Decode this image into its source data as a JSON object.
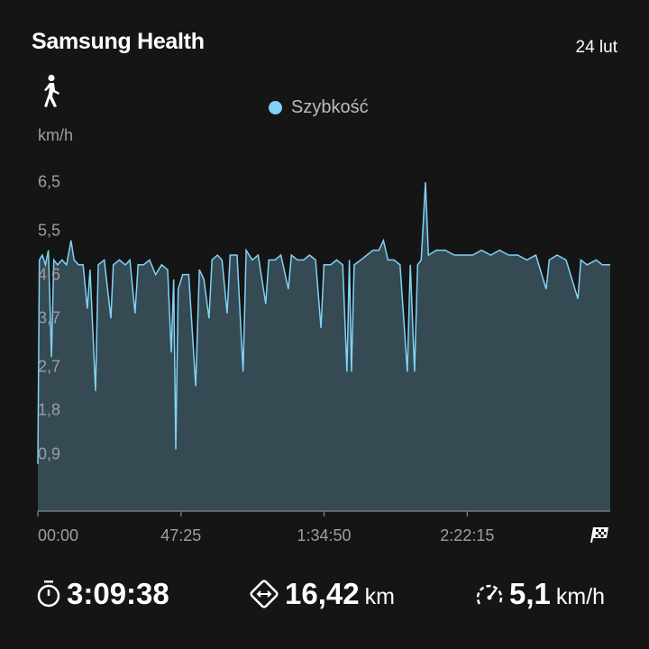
{
  "header": {
    "title": "Samsung Health",
    "date": "24 lut",
    "activity_icon": "walking-person-icon"
  },
  "colors": {
    "line": "#7fd3f7",
    "fill": "#364a53",
    "background": "#151515"
  },
  "chart_data": {
    "type": "area",
    "legend": [
      "Szybkość"
    ],
    "legend_placement": "top-center",
    "ylabel": "km/h",
    "y_ticks": [
      "0,9",
      "1,8",
      "2,7",
      "3,7",
      "4,6",
      "5,5",
      "6,5"
    ],
    "y_tick_values": [
      0.9,
      1.8,
      2.7,
      3.7,
      4.6,
      5.5,
      6.5
    ],
    "x_ticks": [
      "00:00",
      "47:25",
      "1:34:50",
      "2:22:15"
    ],
    "x_tick_values_min": [
      0,
      47.42,
      94.83,
      142.25
    ],
    "x_end_icon": "checkered-flag-icon",
    "xlim_min": [
      0,
      189.63
    ],
    "grid": false,
    "series": [
      {
        "name": "Szybkość",
        "points_min_kmh": [
          [
            0,
            0.7
          ],
          [
            0.5,
            4.9
          ],
          [
            1.5,
            5.0
          ],
          [
            2.5,
            4.8
          ],
          [
            3.5,
            5.1
          ],
          [
            4.5,
            2.9
          ],
          [
            5.3,
            4.9
          ],
          [
            6.5,
            4.8
          ],
          [
            8,
            4.9
          ],
          [
            9.5,
            4.8
          ],
          [
            11,
            5.3
          ],
          [
            12,
            4.9
          ],
          [
            13.5,
            4.8
          ],
          [
            15,
            4.8
          ],
          [
            16.4,
            3.9
          ],
          [
            17.3,
            4.7
          ],
          [
            19.1,
            2.2
          ],
          [
            20,
            4.8
          ],
          [
            22,
            4.9
          ],
          [
            24.2,
            3.7
          ],
          [
            25,
            4.8
          ],
          [
            27,
            4.9
          ],
          [
            29,
            4.8
          ],
          [
            30.5,
            4.9
          ],
          [
            32.2,
            3.8
          ],
          [
            33.2,
            4.8
          ],
          [
            35,
            4.8
          ],
          [
            37,
            4.9
          ],
          [
            39,
            4.6
          ],
          [
            41,
            4.8
          ],
          [
            43,
            4.7
          ],
          [
            44.2,
            3.0
          ],
          [
            45,
            4.5
          ],
          [
            45.7,
            1.0
          ],
          [
            46.5,
            4.3
          ],
          [
            48,
            4.6
          ],
          [
            50,
            4.6
          ],
          [
            52.3,
            2.3
          ],
          [
            53.5,
            4.7
          ],
          [
            55,
            4.5
          ],
          [
            56.7,
            3.7
          ],
          [
            57.7,
            4.9
          ],
          [
            59.5,
            5.0
          ],
          [
            61,
            4.9
          ],
          [
            62.7,
            3.8
          ],
          [
            63.7,
            5.0
          ],
          [
            66,
            5.0
          ],
          [
            68,
            2.6
          ],
          [
            69,
            5.1
          ],
          [
            71,
            4.9
          ],
          [
            73,
            5.0
          ],
          [
            75.5,
            4.0
          ],
          [
            76.5,
            4.9
          ],
          [
            78.5,
            4.9
          ],
          [
            80.5,
            5.0
          ],
          [
            83,
            4.3
          ],
          [
            84,
            5.0
          ],
          [
            86,
            4.9
          ],
          [
            88,
            4.9
          ],
          [
            90,
            5.0
          ],
          [
            92,
            4.9
          ],
          [
            93.8,
            3.5
          ],
          [
            94.8,
            4.8
          ],
          [
            97,
            4.8
          ],
          [
            99,
            4.9
          ],
          [
            101,
            4.8
          ],
          [
            102.4,
            2.6
          ],
          [
            103.2,
            4.9
          ],
          [
            103.9,
            2.6
          ],
          [
            104.8,
            4.8
          ],
          [
            107,
            4.9
          ],
          [
            109,
            5.0
          ],
          [
            111,
            5.1
          ],
          [
            113,
            5.1
          ],
          [
            114.5,
            5.3
          ],
          [
            116,
            4.9
          ],
          [
            118,
            4.9
          ],
          [
            120,
            4.8
          ],
          [
            122.4,
            2.6
          ],
          [
            123.4,
            4.8
          ],
          [
            124.8,
            2.6
          ],
          [
            125.8,
            4.8
          ],
          [
            127,
            4.9
          ],
          [
            128.4,
            6.5
          ],
          [
            129.4,
            5.0
          ],
          [
            132,
            5.1
          ],
          [
            135,
            5.1
          ],
          [
            138,
            5.0
          ],
          [
            141,
            5.0
          ],
          [
            144,
            5.0
          ],
          [
            147,
            5.1
          ],
          [
            150,
            5.0
          ],
          [
            153,
            5.1
          ],
          [
            156,
            5.0
          ],
          [
            159,
            5.0
          ],
          [
            162,
            4.9
          ],
          [
            165,
            5.0
          ],
          [
            168.4,
            4.3
          ],
          [
            169.4,
            4.9
          ],
          [
            172,
            5.0
          ],
          [
            175,
            4.9
          ],
          [
            178.9,
            4.1
          ],
          [
            179.9,
            4.9
          ],
          [
            182,
            4.8
          ],
          [
            185,
            4.9
          ],
          [
            187,
            4.8
          ],
          [
            189.63,
            4.8
          ]
        ]
      }
    ]
  },
  "stats": {
    "duration": {
      "icon": "stopwatch-icon",
      "value": "3:09:38"
    },
    "distance": {
      "icon": "distance-icon",
      "value": "16,42",
      "unit": "km"
    },
    "speed": {
      "icon": "speedometer-icon",
      "value": "5,1",
      "unit": "km/h"
    }
  }
}
